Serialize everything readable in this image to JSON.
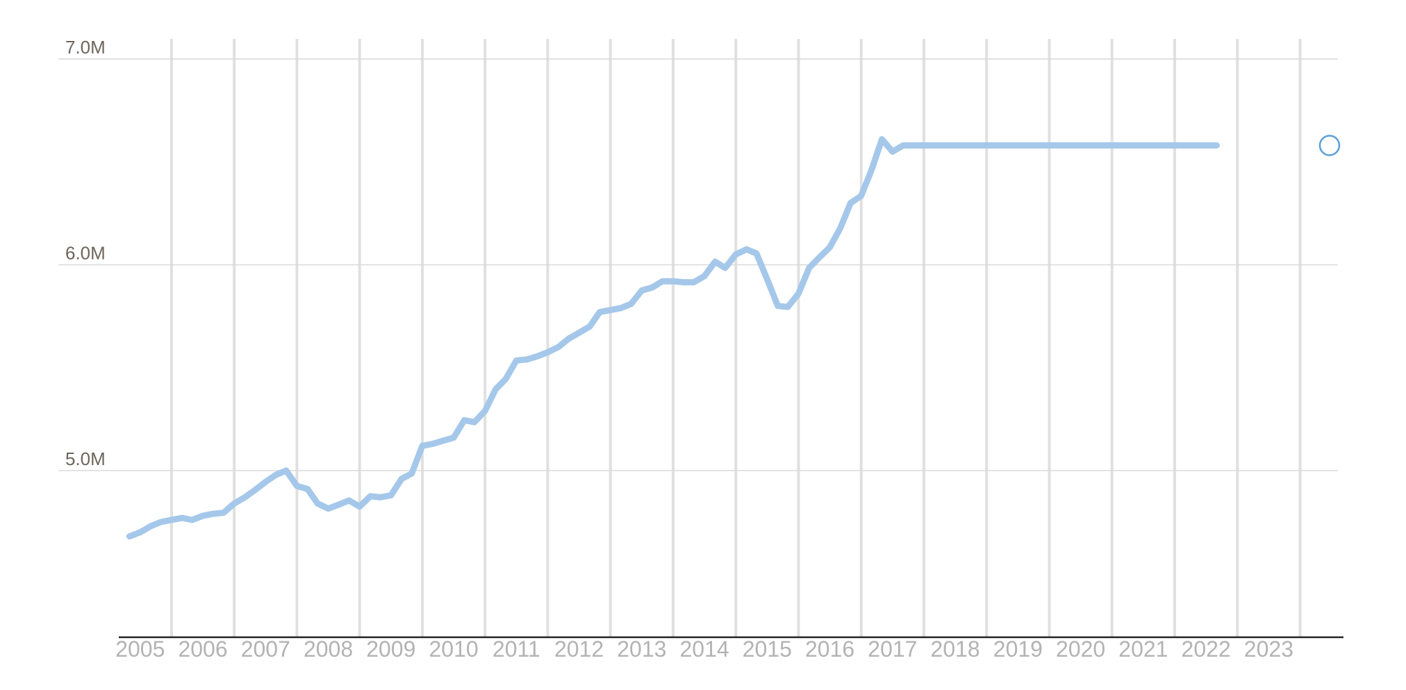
{
  "chart_data": {
    "type": "line",
    "title": "",
    "xlabel": "",
    "ylabel": "",
    "x_ticks": [
      "2005",
      "2006",
      "2007",
      "2008",
      "2009",
      "2010",
      "2011",
      "2012",
      "2013",
      "2014",
      "2015",
      "2016",
      "2017",
      "2018",
      "2019",
      "2020",
      "2021",
      "2022",
      "2023"
    ],
    "y_ticks": [
      {
        "value": 5000000,
        "label": "5.0M"
      },
      {
        "value": 6000000,
        "label": "6.0M"
      },
      {
        "value": 7000000,
        "label": "7.0M"
      }
    ],
    "ylim": [
      4190000,
      7000000
    ],
    "xlim": [
      2004.17,
      2023.67
    ],
    "grid": {
      "horizontal": true,
      "vertical": true
    },
    "colors": {
      "line": "#a5c8ea",
      "marker": "#5a9fd8"
    },
    "series": [
      {
        "x": [
          2004.33,
          2004.5,
          2004.67,
          2004.83,
          2005.0,
          2005.17,
          2005.33,
          2005.5,
          2005.67,
          2005.83,
          2006.0,
          2006.17,
          2006.33,
          2006.5,
          2006.67,
          2006.83,
          2007.0,
          2007.17,
          2007.33,
          2007.5,
          2007.67,
          2007.83,
          2008.0,
          2008.17,
          2008.33,
          2008.5,
          2008.67,
          2008.83,
          2009.0,
          2009.17,
          2009.33,
          2009.5,
          2009.67,
          2009.83,
          2010.0,
          2010.17,
          2010.33,
          2010.5,
          2010.67,
          2010.83,
          2011.0,
          2011.17,
          2011.33,
          2011.5,
          2011.67,
          2011.83,
          2012.0,
          2012.17,
          2012.33,
          2012.5,
          2012.67,
          2012.83,
          2013.0,
          2013.17,
          2013.33,
          2013.5,
          2013.67,
          2013.83,
          2014.0,
          2014.17,
          2014.33,
          2014.5,
          2014.67,
          2014.83,
          2015.0,
          2015.17,
          2015.33,
          2015.5,
          2015.67,
          2015.83,
          2016.0,
          2016.17,
          2016.33,
          2016.5,
          2016.67,
          2016.83,
          2017.0,
          2017.17,
          2017.33,
          2017.5,
          2017.67,
          2017.83,
          2018.0,
          2018.17,
          2018.33,
          2018.5,
          2018.67,
          2018.83,
          2019.0,
          2019.17,
          2019.33,
          2019.5,
          2019.67,
          2019.83,
          2020.0,
          2020.17,
          2020.33,
          2020.5,
          2020.67,
          2020.83,
          2021.0,
          2021.17,
          2021.33,
          2021.5,
          2021.67
        ],
        "y": [
          4680000,
          4700000,
          4730000,
          4750000,
          4760000,
          4770000,
          4760000,
          4780000,
          4790000,
          4795000,
          4840000,
          4870000,
          4905000,
          4945000,
          4980000,
          5000000,
          4925000,
          4910000,
          4840000,
          4815000,
          4835000,
          4855000,
          4825000,
          4875000,
          4870000,
          4880000,
          4960000,
          4985000,
          5120000,
          5130000,
          5145000,
          5160000,
          5245000,
          5235000,
          5290000,
          5395000,
          5445000,
          5535000,
          5540000,
          5555000,
          5575000,
          5600000,
          5640000,
          5670000,
          5700000,
          5770000,
          5780000,
          5790000,
          5810000,
          5875000,
          5890000,
          5920000,
          5920000,
          5915000,
          5915000,
          5945000,
          6015000,
          5985000,
          6050000,
          6075000,
          6055000,
          5930000,
          5800000,
          5795000,
          5860000,
          5985000,
          6035000,
          6085000,
          6180000,
          6300000,
          6335000,
          6465000,
          6610000,
          6550000,
          6580000,
          6580000,
          6580000,
          6580000,
          6580000,
          6580000,
          6580000,
          6580000,
          6580000,
          6580000,
          6580000,
          6580000,
          6580000,
          6580000,
          6580000,
          6580000,
          6580000,
          6580000,
          6580000,
          6580000,
          6580000,
          6580000,
          6580000,
          6580000,
          6580000,
          6580000,
          6580000,
          6580000,
          6580000,
          6580000,
          6580000
        ]
      }
    ]
  }
}
